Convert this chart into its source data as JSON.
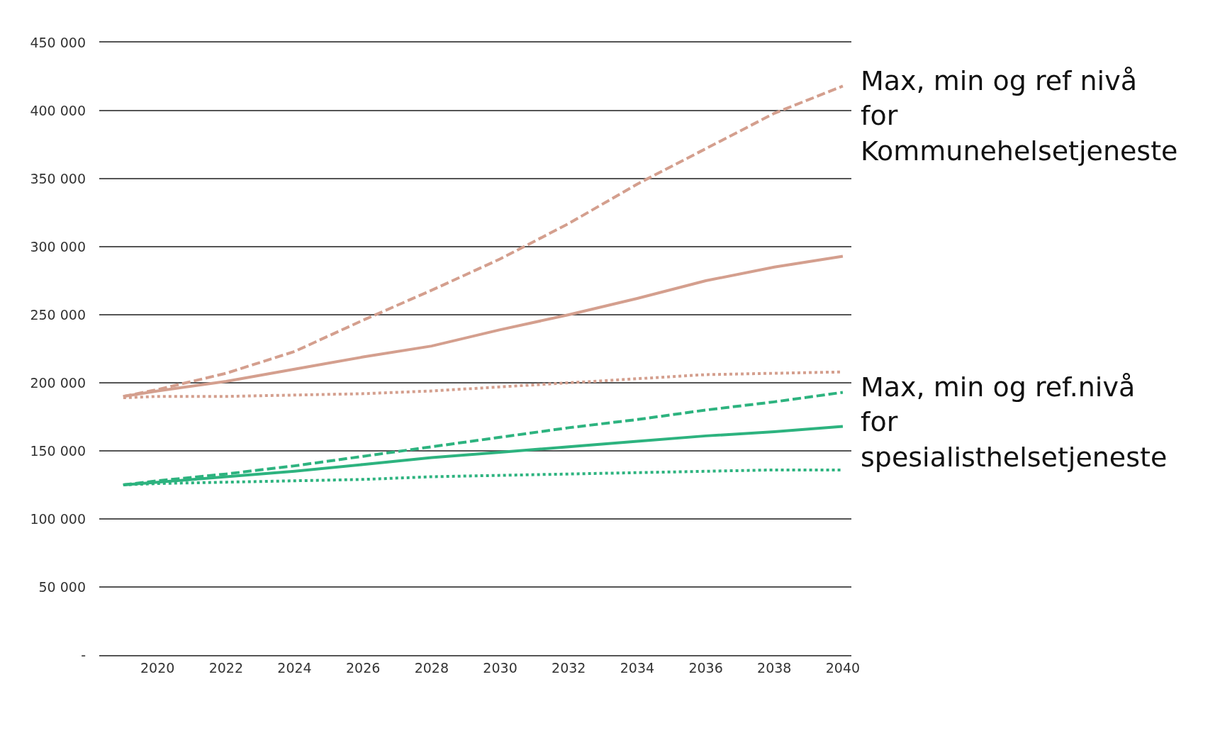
{
  "chart_data": {
    "type": "line",
    "x": [
      2019,
      2020,
      2022,
      2024,
      2026,
      2028,
      2030,
      2032,
      2034,
      2036,
      2038,
      2040
    ],
    "series": [
      {
        "color": "#d49f8e",
        "line_style": "dashed",
        "values": [
          190000,
          195000,
          207000,
          223000,
          246000,
          268000,
          291000,
          317000,
          346000,
          372000,
          398000,
          418000
        ]
      },
      {
        "color": "#d49f8e",
        "line_style": "solid",
        "values": [
          190000,
          194000,
          201000,
          210000,
          219000,
          227000,
          239000,
          250000,
          262000,
          275000,
          285000,
          293000
        ]
      },
      {
        "color": "#d49f8e",
        "line_style": "dotted",
        "values": [
          189000,
          190000,
          190000,
          191000,
          192000,
          194000,
          197000,
          200000,
          203000,
          206000,
          207000,
          208000
        ]
      },
      {
        "color": "#2db37f",
        "line_style": "dashed",
        "values": [
          125000,
          128000,
          133000,
          139000,
          146000,
          153000,
          160000,
          167000,
          173000,
          180000,
          186000,
          193000
        ]
      },
      {
        "color": "#2db37f",
        "line_style": "solid",
        "values": [
          125000,
          127000,
          131000,
          135000,
          140000,
          145000,
          149000,
          153000,
          157000,
          161000,
          164000,
          168000
        ]
      },
      {
        "color": "#2db37f",
        "line_style": "dotted",
        "values": [
          125000,
          126000,
          127000,
          128000,
          129000,
          131000,
          132000,
          133000,
          134000,
          135000,
          136000,
          136000
        ]
      }
    ],
    "xlim": [
      2018.3,
      2040.25
    ],
    "xticks": [
      2020,
      2022,
      2024,
      2026,
      2028,
      2030,
      2032,
      2034,
      2036,
      2038,
      2040
    ],
    "ylim": [
      0,
      450000
    ],
    "yticks": [
      {
        "value": 0,
        "label": "-"
      },
      {
        "value": 50000,
        "label": "50 000"
      },
      {
        "value": 100000,
        "label": "100 000"
      },
      {
        "value": 150000,
        "label": "150 000"
      },
      {
        "value": 200000,
        "label": "200 000"
      },
      {
        "value": 250000,
        "label": "250 000"
      },
      {
        "value": 300000,
        "label": "300 000"
      },
      {
        "value": 350000,
        "label": "350 000"
      },
      {
        "value": 400000,
        "label": "400 000"
      },
      {
        "value": 450000,
        "label": "450 000"
      }
    ],
    "grid": "y",
    "marker": "none",
    "annotations": [
      "Max, min og ref nivå\nfor\nKommunehelsetjeneste",
      "Max, min og ref.nivå\nfor\nspesialisthelsetjeneste"
    ]
  }
}
